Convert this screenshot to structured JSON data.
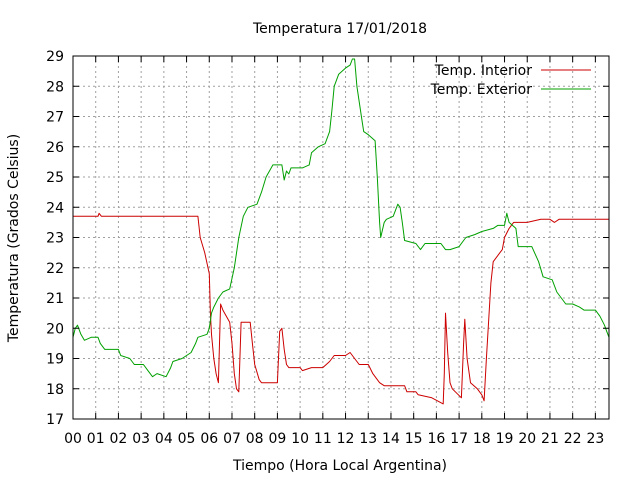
{
  "chart_data": {
    "type": "line",
    "title": "Temperatura 17/01/2018",
    "xlabel": "Tiempo (Hora Local Argentina)",
    "ylabel": "Temperatura (Grados Celsius)",
    "xlim": [
      0,
      23.6
    ],
    "ylim": [
      17,
      29
    ],
    "x_ticks": [
      "00",
      "01",
      "02",
      "03",
      "04",
      "05",
      "06",
      "07",
      "08",
      "09",
      "10",
      "11",
      "12",
      "13",
      "14",
      "15",
      "16",
      "17",
      "18",
      "19",
      "20",
      "21",
      "22",
      "23"
    ],
    "y_ticks": [
      17,
      18,
      19,
      20,
      21,
      22,
      23,
      24,
      25,
      26,
      27,
      28,
      29
    ],
    "grid": true,
    "legend_position": "top-right",
    "series": [
      {
        "name": "Temp. Interior",
        "color": "#cc0000",
        "points": [
          [
            0.0,
            23.7
          ],
          [
            1.1,
            23.7
          ],
          [
            1.15,
            23.8
          ],
          [
            1.25,
            23.7
          ],
          [
            3.0,
            23.7
          ],
          [
            5.0,
            23.7
          ],
          [
            5.5,
            23.7
          ],
          [
            5.6,
            23.0
          ],
          [
            5.8,
            22.5
          ],
          [
            6.0,
            21.8
          ],
          [
            6.05,
            20.5
          ],
          [
            6.1,
            19.8
          ],
          [
            6.2,
            19.0
          ],
          [
            6.3,
            18.5
          ],
          [
            6.4,
            18.2
          ],
          [
            6.5,
            20.8
          ],
          [
            6.6,
            20.6
          ],
          [
            6.9,
            20.2
          ],
          [
            7.0,
            19.5
          ],
          [
            7.1,
            18.5
          ],
          [
            7.2,
            18.0
          ],
          [
            7.3,
            17.9
          ],
          [
            7.4,
            20.2
          ],
          [
            7.8,
            20.2
          ],
          [
            7.9,
            19.5
          ],
          [
            8.0,
            18.8
          ],
          [
            8.2,
            18.3
          ],
          [
            8.3,
            18.2
          ],
          [
            9.0,
            18.2
          ],
          [
            9.1,
            19.9
          ],
          [
            9.2,
            20.0
          ],
          [
            9.3,
            19.3
          ],
          [
            9.4,
            18.8
          ],
          [
            9.5,
            18.7
          ],
          [
            10.0,
            18.7
          ],
          [
            10.1,
            18.6
          ],
          [
            10.5,
            18.7
          ],
          [
            11.0,
            18.7
          ],
          [
            11.3,
            18.9
          ],
          [
            11.5,
            19.1
          ],
          [
            12.0,
            19.1
          ],
          [
            12.2,
            19.2
          ],
          [
            12.4,
            19.0
          ],
          [
            12.6,
            18.8
          ],
          [
            13.0,
            18.8
          ],
          [
            13.2,
            18.5
          ],
          [
            13.5,
            18.2
          ],
          [
            13.7,
            18.1
          ],
          [
            14.6,
            18.1
          ],
          [
            14.7,
            17.9
          ],
          [
            15.1,
            17.9
          ],
          [
            15.2,
            17.8
          ],
          [
            15.8,
            17.7
          ],
          [
            16.3,
            17.5
          ],
          [
            16.35,
            18.5
          ],
          [
            16.4,
            20.5
          ],
          [
            16.5,
            19.2
          ],
          [
            16.6,
            18.2
          ],
          [
            16.7,
            18.0
          ],
          [
            17.1,
            17.7
          ],
          [
            17.2,
            19.5
          ],
          [
            17.25,
            20.3
          ],
          [
            17.35,
            19.0
          ],
          [
            17.5,
            18.2
          ],
          [
            17.8,
            18.0
          ],
          [
            18.0,
            17.8
          ],
          [
            18.1,
            17.6
          ],
          [
            18.2,
            19.0
          ],
          [
            18.4,
            21.5
          ],
          [
            18.5,
            22.2
          ],
          [
            18.8,
            22.5
          ],
          [
            18.9,
            22.6
          ],
          [
            19.0,
            23.0
          ],
          [
            19.2,
            23.3
          ],
          [
            19.4,
            23.5
          ],
          [
            20.0,
            23.5
          ],
          [
            20.6,
            23.6
          ],
          [
            21.0,
            23.6
          ],
          [
            21.2,
            23.5
          ],
          [
            21.4,
            23.6
          ],
          [
            23.6,
            23.6
          ]
        ]
      },
      {
        "name": "Temp. Exterior",
        "color": "#00a000",
        "points": [
          [
            0.0,
            19.7
          ],
          [
            0.1,
            20.0
          ],
          [
            0.2,
            20.1
          ],
          [
            0.35,
            19.8
          ],
          [
            0.5,
            19.6
          ],
          [
            0.8,
            19.7
          ],
          [
            1.1,
            19.7
          ],
          [
            1.2,
            19.5
          ],
          [
            1.4,
            19.3
          ],
          [
            2.0,
            19.3
          ],
          [
            2.1,
            19.1
          ],
          [
            2.5,
            19.0
          ],
          [
            2.7,
            18.8
          ],
          [
            3.1,
            18.8
          ],
          [
            3.3,
            18.6
          ],
          [
            3.5,
            18.4
          ],
          [
            3.7,
            18.5
          ],
          [
            4.1,
            18.4
          ],
          [
            4.3,
            18.7
          ],
          [
            4.4,
            18.9
          ],
          [
            4.8,
            19.0
          ],
          [
            5.0,
            19.1
          ],
          [
            5.2,
            19.2
          ],
          [
            5.4,
            19.5
          ],
          [
            5.5,
            19.7
          ],
          [
            5.9,
            19.8
          ],
          [
            6.0,
            20.0
          ],
          [
            6.1,
            20.5
          ],
          [
            6.2,
            20.7
          ],
          [
            6.4,
            21.0
          ],
          [
            6.6,
            21.2
          ],
          [
            6.9,
            21.3
          ],
          [
            7.1,
            22.0
          ],
          [
            7.3,
            23.0
          ],
          [
            7.5,
            23.7
          ],
          [
            7.7,
            24.0
          ],
          [
            8.1,
            24.1
          ],
          [
            8.3,
            24.5
          ],
          [
            8.5,
            25.0
          ],
          [
            8.8,
            25.4
          ],
          [
            9.2,
            25.4
          ],
          [
            9.3,
            24.9
          ],
          [
            9.4,
            25.2
          ],
          [
            9.5,
            25.1
          ],
          [
            9.6,
            25.3
          ],
          [
            10.1,
            25.3
          ],
          [
            10.4,
            25.4
          ],
          [
            10.5,
            25.8
          ],
          [
            10.8,
            26.0
          ],
          [
            11.1,
            26.1
          ],
          [
            11.3,
            26.5
          ],
          [
            11.4,
            27.2
          ],
          [
            11.5,
            28.0
          ],
          [
            11.7,
            28.4
          ],
          [
            12.0,
            28.6
          ],
          [
            12.2,
            28.7
          ],
          [
            12.3,
            28.9
          ],
          [
            12.4,
            28.9
          ],
          [
            12.5,
            28.0
          ],
          [
            12.7,
            27.0
          ],
          [
            12.8,
            26.5
          ],
          [
            13.0,
            26.4
          ],
          [
            13.3,
            26.2
          ],
          [
            13.4,
            25.0
          ],
          [
            13.5,
            23.5
          ],
          [
            13.55,
            23.0
          ],
          [
            13.7,
            23.5
          ],
          [
            13.8,
            23.6
          ],
          [
            14.1,
            23.7
          ],
          [
            14.3,
            24.1
          ],
          [
            14.4,
            24.0
          ],
          [
            14.5,
            23.5
          ],
          [
            14.6,
            22.9
          ],
          [
            15.1,
            22.8
          ],
          [
            15.3,
            22.6
          ],
          [
            15.5,
            22.8
          ],
          [
            16.2,
            22.8
          ],
          [
            16.4,
            22.6
          ],
          [
            16.6,
            22.6
          ],
          [
            17.0,
            22.7
          ],
          [
            17.2,
            22.9
          ],
          [
            17.3,
            23.0
          ],
          [
            17.7,
            23.1
          ],
          [
            18.0,
            23.2
          ],
          [
            18.5,
            23.3
          ],
          [
            18.7,
            23.4
          ],
          [
            19.0,
            23.4
          ],
          [
            19.1,
            23.8
          ],
          [
            19.2,
            23.5
          ],
          [
            19.5,
            23.3
          ],
          [
            19.6,
            22.7
          ],
          [
            20.2,
            22.7
          ],
          [
            20.5,
            22.2
          ],
          [
            20.7,
            21.7
          ],
          [
            21.1,
            21.6
          ],
          [
            21.3,
            21.2
          ],
          [
            21.5,
            21.0
          ],
          [
            21.7,
            20.8
          ],
          [
            22.0,
            20.8
          ],
          [
            22.3,
            20.7
          ],
          [
            22.5,
            20.6
          ],
          [
            23.0,
            20.6
          ],
          [
            23.2,
            20.4
          ],
          [
            23.4,
            20.1
          ],
          [
            23.5,
            19.9
          ],
          [
            23.6,
            19.7
          ]
        ]
      }
    ]
  }
}
